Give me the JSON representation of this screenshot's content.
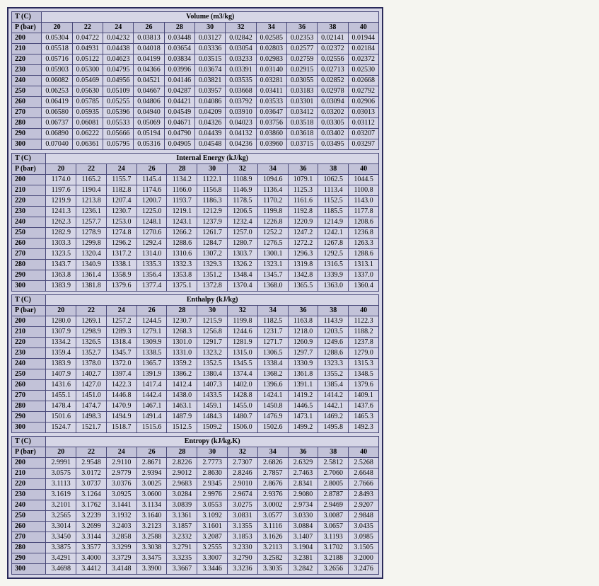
{
  "pressures": [
    20,
    22,
    24,
    26,
    28,
    30,
    32,
    34,
    36,
    38,
    40
  ],
  "temps": [
    200,
    210,
    220,
    230,
    240,
    250,
    260,
    270,
    280,
    290,
    300
  ],
  "corner_top": "T (C)",
  "corner_bottom": "P (bar)",
  "tables": [
    {
      "title": "Volume (m3/kg)",
      "decimals": 5,
      "rows": [
        [
          0.05304,
          0.04722,
          0.04232,
          0.03813,
          0.03448,
          0.03127,
          0.02842,
          0.02585,
          0.02353,
          0.02141,
          0.01944
        ],
        [
          0.05518,
          0.04931,
          0.04438,
          0.04018,
          0.03654,
          0.03336,
          0.03054,
          0.02803,
          0.02577,
          0.02372,
          0.02184
        ],
        [
          0.05716,
          0.05122,
          0.04623,
          0.04199,
          0.03834,
          0.03515,
          0.03233,
          0.02983,
          0.02759,
          0.02556,
          0.02372
        ],
        [
          0.05903,
          0.053,
          0.04795,
          0.04366,
          0.03996,
          0.03674,
          0.03391,
          0.0314,
          0.02915,
          0.02713,
          0.0253
        ],
        [
          0.06082,
          0.05469,
          0.04956,
          0.04521,
          0.04146,
          0.03821,
          0.03535,
          0.03281,
          0.03055,
          0.02852,
          0.02668
        ],
        [
          0.06253,
          0.0563,
          0.05109,
          0.04667,
          0.04287,
          0.03957,
          0.03668,
          0.03411,
          0.03183,
          0.02978,
          0.02792
        ],
        [
          0.06419,
          0.05785,
          0.05255,
          0.04806,
          0.04421,
          0.04086,
          0.03792,
          0.03533,
          0.03301,
          0.03094,
          0.02906
        ],
        [
          0.0658,
          0.05935,
          0.05396,
          0.0494,
          0.04549,
          0.04209,
          0.0391,
          0.03647,
          0.03412,
          0.03202,
          0.03013
        ],
        [
          0.06737,
          0.06081,
          0.05533,
          0.05069,
          0.04671,
          0.04326,
          0.04023,
          0.03756,
          0.03518,
          0.03305,
          0.03112
        ],
        [
          0.0689,
          0.06222,
          0.05666,
          0.05194,
          0.0479,
          0.04439,
          0.04132,
          0.0386,
          0.03618,
          0.03402,
          0.03207
        ],
        [
          0.0704,
          0.06361,
          0.05795,
          0.05316,
          0.04905,
          0.04548,
          0.04236,
          0.0396,
          0.03715,
          0.03495,
          0.03297
        ]
      ]
    },
    {
      "title": "Internal Energy (kJ/kg)",
      "decimals": 1,
      "rows": [
        [
          1174.0,
          1165.2,
          1155.7,
          1145.4,
          1134.2,
          1122.1,
          1108.9,
          1094.6,
          1079.1,
          1062.5,
          1044.5
        ],
        [
          1197.6,
          1190.4,
          1182.8,
          1174.6,
          1166.0,
          1156.8,
          1146.9,
          1136.4,
          1125.3,
          1113.4,
          1100.8
        ],
        [
          1219.9,
          1213.8,
          1207.4,
          1200.7,
          1193.7,
          1186.3,
          1178.5,
          1170.2,
          1161.6,
          1152.5,
          1143.0
        ],
        [
          1241.3,
          1236.1,
          1230.7,
          1225.0,
          1219.1,
          1212.9,
          1206.5,
          1199.8,
          1192.8,
          1185.5,
          1177.8
        ],
        [
          1262.3,
          1257.7,
          1253.0,
          1248.1,
          1243.1,
          1237.9,
          1232.4,
          1226.8,
          1220.9,
          1214.9,
          1208.6
        ],
        [
          1282.9,
          1278.9,
          1274.8,
          1270.6,
          1266.2,
          1261.7,
          1257.0,
          1252.2,
          1247.2,
          1242.1,
          1236.8
        ],
        [
          1303.3,
          1299.8,
          1296.2,
          1292.4,
          1288.6,
          1284.7,
          1280.7,
          1276.5,
          1272.2,
          1267.8,
          1263.3
        ],
        [
          1323.5,
          1320.4,
          1317.2,
          1314.0,
          1310.6,
          1307.2,
          1303.7,
          1300.1,
          1296.3,
          1292.5,
          1288.6
        ],
        [
          1343.7,
          1340.9,
          1338.1,
          1335.3,
          1332.3,
          1329.3,
          1326.2,
          1323.1,
          1319.8,
          1316.5,
          1313.1
        ],
        [
          1363.8,
          1361.4,
          1358.9,
          1356.4,
          1353.8,
          1351.2,
          1348.4,
          1345.7,
          1342.8,
          1339.9,
          1337.0
        ],
        [
          1383.9,
          1381.8,
          1379.6,
          1377.4,
          1375.1,
          1372.8,
          1370.4,
          1368.0,
          1365.5,
          1363.0,
          1360.4
        ]
      ]
    },
    {
      "title": "Enthalpy (kJ/kg)",
      "decimals": 1,
      "rows": [
        [
          1280.0,
          1269.1,
          1257.2,
          1244.5,
          1230.7,
          1215.9,
          1199.8,
          1182.5,
          1163.8,
          1143.9,
          1122.3
        ],
        [
          1307.9,
          1298.9,
          1289.3,
          1279.1,
          1268.3,
          1256.8,
          1244.6,
          1231.7,
          1218.0,
          1203.5,
          1188.2
        ],
        [
          1334.2,
          1326.5,
          1318.4,
          1309.9,
          1301.0,
          1291.7,
          1281.9,
          1271.7,
          1260.9,
          1249.6,
          1237.8
        ],
        [
          1359.4,
          1352.7,
          1345.7,
          1338.5,
          1331.0,
          1323.2,
          1315.0,
          1306.5,
          1297.7,
          1288.6,
          1279.0
        ],
        [
          1383.9,
          1378.0,
          1372.0,
          1365.7,
          1359.2,
          1352.5,
          1345.5,
          1338.4,
          1330.9,
          1323.3,
          1315.3
        ],
        [
          1407.9,
          1402.7,
          1397.4,
          1391.9,
          1386.2,
          1380.4,
          1374.4,
          1368.2,
          1361.8,
          1355.2,
          1348.5
        ],
        [
          1431.6,
          1427.0,
          1422.3,
          1417.4,
          1412.4,
          1407.3,
          1402.0,
          1396.6,
          1391.1,
          1385.4,
          1379.6
        ],
        [
          1455.1,
          1451.0,
          1446.8,
          1442.4,
          1438.0,
          1433.5,
          1428.8,
          1424.1,
          1419.2,
          1414.2,
          1409.1
        ],
        [
          1478.4,
          1474.7,
          1470.9,
          1467.1,
          1463.1,
          1459.1,
          1455.0,
          1450.8,
          1446.5,
          1442.1,
          1437.6
        ],
        [
          1501.6,
          1498.3,
          1494.9,
          1491.4,
          1487.9,
          1484.3,
          1480.7,
          1476.9,
          1473.1,
          1469.2,
          1465.3
        ],
        [
          1524.7,
          1521.7,
          1518.7,
          1515.6,
          1512.5,
          1509.2,
          1506.0,
          1502.6,
          1499.2,
          1495.8,
          1492.3
        ]
      ]
    },
    {
      "title": "Entropy (kJ/kg.K)",
      "decimals": 4,
      "rows": [
        [
          2.9991,
          2.9548,
          2.911,
          2.8671,
          2.8226,
          2.7773,
          2.7307,
          2.6826,
          2.6329,
          2.5812,
          2.5268
        ],
        [
          3.0575,
          3.0172,
          2.9779,
          2.9394,
          2.9012,
          2.863,
          2.8246,
          2.7857,
          2.7463,
          2.706,
          2.6648
        ],
        [
          3.1113,
          3.0737,
          3.0376,
          3.0025,
          2.9683,
          2.9345,
          2.901,
          2.8676,
          2.8341,
          2.8005,
          2.7666
        ],
        [
          3.1619,
          3.1264,
          3.0925,
          3.06,
          3.0284,
          2.9976,
          2.9674,
          2.9376,
          2.908,
          2.8787,
          2.8493
        ],
        [
          3.2101,
          3.1762,
          3.1441,
          3.1134,
          3.0839,
          3.0553,
          3.0275,
          3.0002,
          2.9734,
          2.9469,
          2.9207
        ],
        [
          3.2565,
          3.2239,
          3.1932,
          3.164,
          3.1361,
          3.1092,
          3.0831,
          3.0577,
          3.033,
          3.0087,
          2.9848
        ],
        [
          3.3014,
          3.2699,
          3.2403,
          3.2123,
          3.1857,
          3.1601,
          3.1355,
          3.1116,
          3.0884,
          3.0657,
          3.0435
        ],
        [
          3.345,
          3.3144,
          3.2858,
          3.2588,
          3.2332,
          3.2087,
          3.1853,
          3.1626,
          3.1407,
          3.1193,
          3.0985
        ],
        [
          3.3875,
          3.3577,
          3.3299,
          3.3038,
          3.2791,
          3.2555,
          3.233,
          3.2113,
          3.1904,
          3.1702,
          3.1505
        ],
        [
          3.4291,
          3.4,
          3.3729,
          3.3475,
          3.3235,
          3.3007,
          3.279,
          3.2582,
          3.2381,
          3.2188,
          3.2
        ],
        [
          3.4698,
          3.4412,
          3.4148,
          3.39,
          3.3667,
          3.3446,
          3.3236,
          3.3035,
          3.2842,
          3.2656,
          3.2476
        ]
      ]
    }
  ]
}
